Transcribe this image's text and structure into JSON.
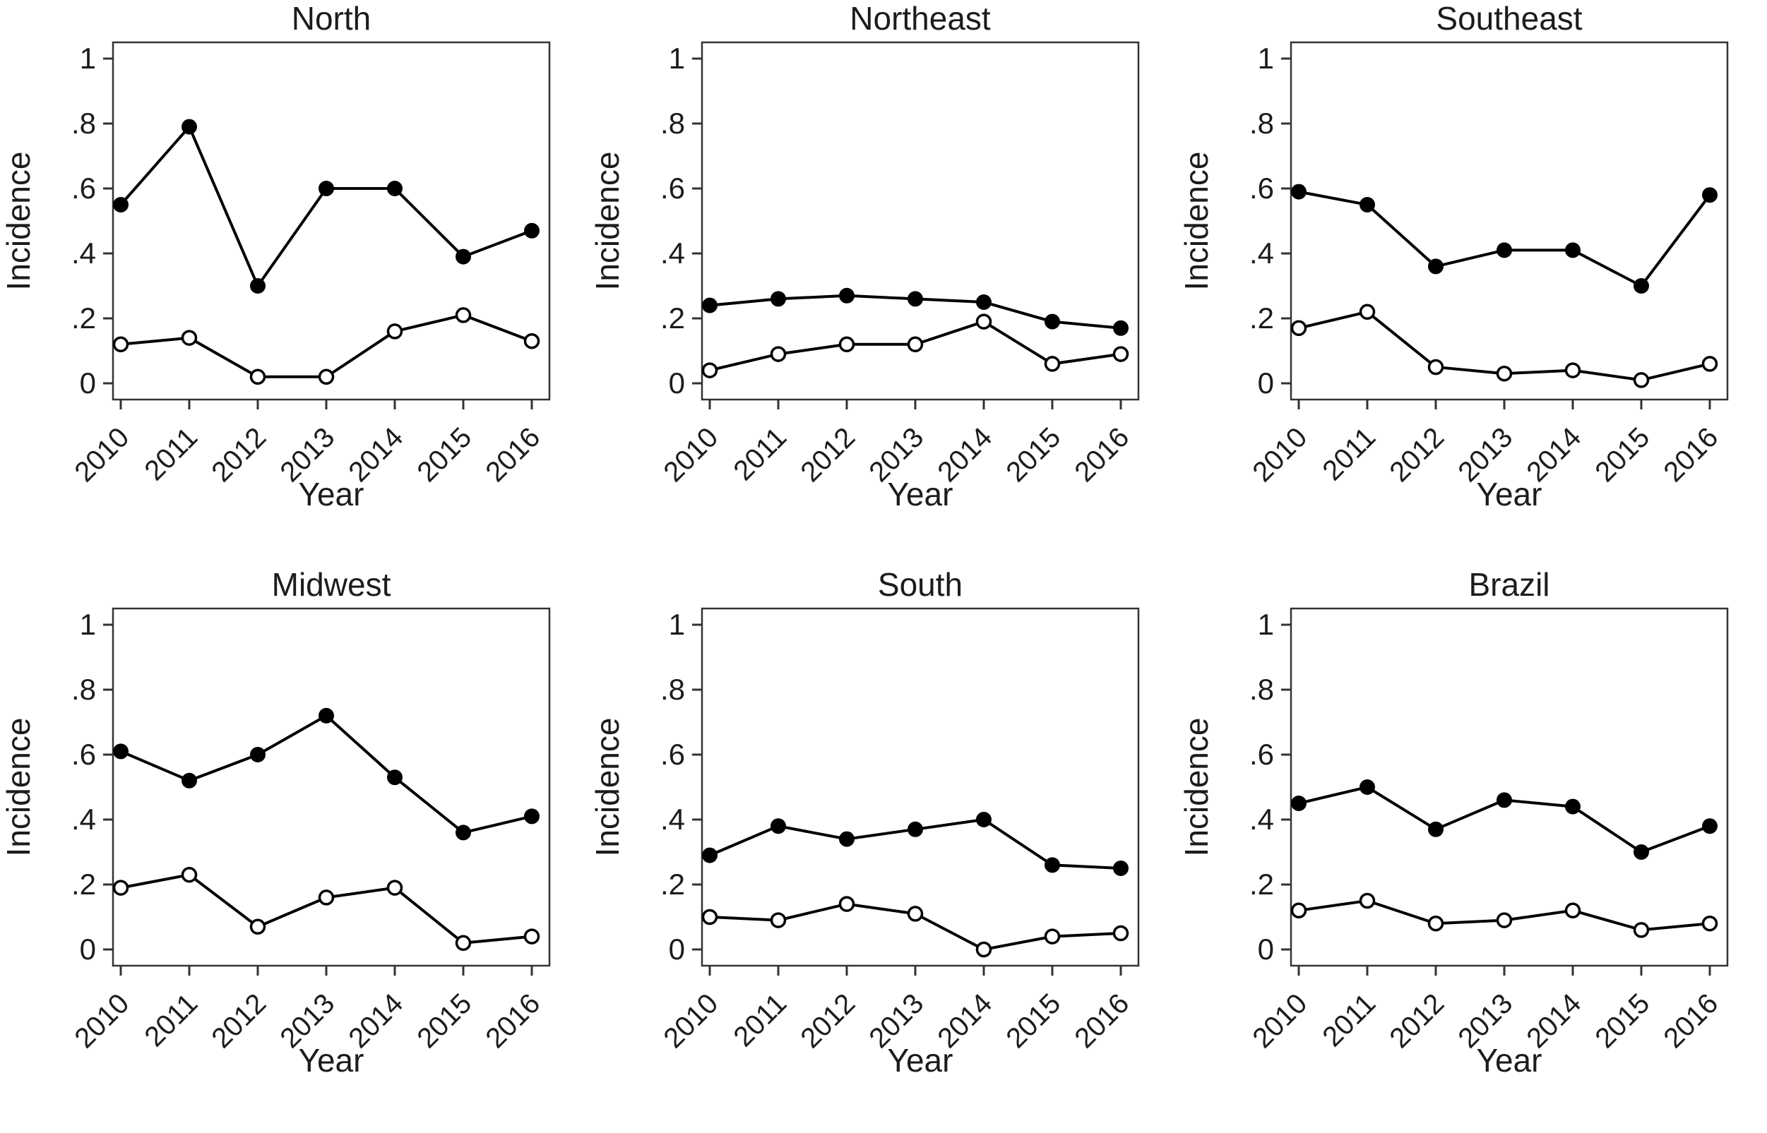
{
  "figure": {
    "background": "#ffffff",
    "series_color": "#000000",
    "frame_color": "#333333",
    "text_color": "#1c1c1c"
  },
  "axes": {
    "ylabel": "Incidence",
    "xlabel": "Year",
    "ylim": [
      0,
      1
    ],
    "yticks": [
      {
        "v": 0,
        "label": "0"
      },
      {
        "v": 0.2,
        "label": ".2"
      },
      {
        "v": 0.4,
        "label": ".4"
      },
      {
        "v": 0.6,
        "label": ".6"
      },
      {
        "v": 0.8,
        "label": ".8"
      },
      {
        "v": 1,
        "label": "1"
      }
    ],
    "years": [
      "2010",
      "2011",
      "2012",
      "2013",
      "2014",
      "2015",
      "2016"
    ]
  },
  "chart_data": [
    {
      "type": "line",
      "title": "North",
      "xlabel": "Year",
      "ylabel": "Incidence",
      "ylim": [
        0,
        1
      ],
      "grid": false,
      "x": [
        "2010",
        "2011",
        "2012",
        "2013",
        "2014",
        "2015",
        "2016"
      ],
      "series": [
        {
          "name": "filled-circle",
          "marker": "filled",
          "values": [
            0.55,
            0.79,
            0.3,
            0.6,
            0.6,
            0.39,
            0.47
          ]
        },
        {
          "name": "open-circle",
          "marker": "open",
          "values": [
            0.12,
            0.14,
            0.02,
            0.02,
            0.16,
            0.21,
            0.13
          ]
        }
      ]
    },
    {
      "type": "line",
      "title": "Northeast",
      "xlabel": "Year",
      "ylabel": "Incidence",
      "ylim": [
        0,
        1
      ],
      "grid": false,
      "x": [
        "2010",
        "2011",
        "2012",
        "2013",
        "2014",
        "2015",
        "2016"
      ],
      "series": [
        {
          "name": "filled-circle",
          "marker": "filled",
          "values": [
            0.24,
            0.26,
            0.27,
            0.26,
            0.25,
            0.19,
            0.17
          ]
        },
        {
          "name": "open-circle",
          "marker": "open",
          "values": [
            0.04,
            0.09,
            0.12,
            0.12,
            0.19,
            0.06,
            0.09
          ]
        }
      ]
    },
    {
      "type": "line",
      "title": "Southeast",
      "xlabel": "Year",
      "ylabel": "Incidence",
      "ylim": [
        0,
        1
      ],
      "grid": false,
      "x": [
        "2010",
        "2011",
        "2012",
        "2013",
        "2014",
        "2015",
        "2016"
      ],
      "series": [
        {
          "name": "filled-circle",
          "marker": "filled",
          "values": [
            0.59,
            0.55,
            0.36,
            0.41,
            0.41,
            0.3,
            0.58
          ]
        },
        {
          "name": "open-circle",
          "marker": "open",
          "values": [
            0.17,
            0.22,
            0.05,
            0.03,
            0.04,
            0.01,
            0.06
          ]
        }
      ]
    },
    {
      "type": "line",
      "title": "Midwest",
      "xlabel": "Year",
      "ylabel": "Incidence",
      "ylim": [
        0,
        1
      ],
      "grid": false,
      "x": [
        "2010",
        "2011",
        "2012",
        "2013",
        "2014",
        "2015",
        "2016"
      ],
      "series": [
        {
          "name": "filled-circle",
          "marker": "filled",
          "values": [
            0.61,
            0.52,
            0.6,
            0.72,
            0.53,
            0.36,
            0.41
          ]
        },
        {
          "name": "open-circle",
          "marker": "open",
          "values": [
            0.19,
            0.23,
            0.07,
            0.16,
            0.19,
            0.02,
            0.04
          ]
        }
      ]
    },
    {
      "type": "line",
      "title": "South",
      "xlabel": "Year",
      "ylabel": "Incidence",
      "ylim": [
        0,
        1
      ],
      "grid": false,
      "x": [
        "2010",
        "2011",
        "2012",
        "2013",
        "2014",
        "2015",
        "2016"
      ],
      "series": [
        {
          "name": "filled-circle",
          "marker": "filled",
          "values": [
            0.29,
            0.38,
            0.34,
            0.37,
            0.4,
            0.26,
            0.25
          ]
        },
        {
          "name": "open-circle",
          "marker": "open",
          "values": [
            0.1,
            0.09,
            0.14,
            0.11,
            0.0,
            0.04,
            0.05
          ]
        }
      ]
    },
    {
      "type": "line",
      "title": "Brazil",
      "xlabel": "Year",
      "ylabel": "Incidence",
      "ylim": [
        0,
        1
      ],
      "grid": false,
      "x": [
        "2010",
        "2011",
        "2012",
        "2013",
        "2014",
        "2015",
        "2016"
      ],
      "series": [
        {
          "name": "filled-circle",
          "marker": "filled",
          "values": [
            0.45,
            0.5,
            0.37,
            0.46,
            0.44,
            0.3,
            0.38
          ]
        },
        {
          "name": "open-circle",
          "marker": "open",
          "values": [
            0.12,
            0.15,
            0.08,
            0.09,
            0.12,
            0.06,
            0.08
          ]
        }
      ]
    }
  ]
}
